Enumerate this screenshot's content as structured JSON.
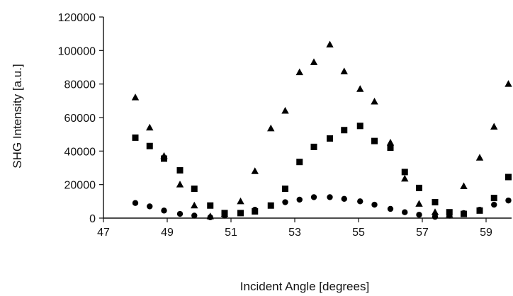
{
  "chart_data": {
    "type": "scatter",
    "title": "",
    "xlabel": "Incident Angle [degrees]",
    "ylabel": "SHG Intensity [a.u.]",
    "xlim": [
      47,
      59.8
    ],
    "ylim": [
      0,
      120000
    ],
    "xticks": [
      47,
      49,
      51,
      53,
      55,
      57,
      59
    ],
    "yticks": [
      0,
      20000,
      40000,
      60000,
      80000,
      100000,
      120000
    ],
    "grid": false,
    "legend": "none",
    "colors": {
      "marker": "#000000",
      "axis": "#111111"
    },
    "series": [
      {
        "marker": "triangle",
        "x": [
          48.0,
          48.45,
          48.9,
          49.4,
          49.85,
          50.35,
          50.8,
          51.3,
          51.75,
          52.25,
          52.7,
          53.15,
          53.6,
          54.1,
          54.55,
          55.05,
          55.5,
          56.0,
          56.45,
          56.9,
          57.4,
          57.85,
          58.3,
          58.8,
          59.25,
          59.7
        ],
        "y": [
          72000,
          54000,
          37000,
          20000,
          7500,
          1000,
          2500,
          10000,
          28000,
          53500,
          64000,
          87000,
          93000,
          103500,
          87500,
          77000,
          69500,
          45000,
          23500,
          8500,
          3500,
          2000,
          19000,
          36000,
          54500,
          80000
        ]
      },
      {
        "marker": "square",
        "x": [
          48.0,
          48.45,
          48.9,
          49.4,
          49.85,
          50.35,
          50.8,
          51.3,
          51.75,
          52.25,
          52.7,
          53.15,
          53.6,
          54.1,
          54.55,
          55.05,
          55.5,
          56.0,
          56.45,
          56.9,
          57.4,
          57.85,
          58.3,
          58.8,
          59.25,
          59.7
        ],
        "y": [
          48000,
          43000,
          35500,
          28500,
          17500,
          7500,
          3000,
          3000,
          4000,
          7500,
          17500,
          33500,
          42500,
          47500,
          52500,
          55000,
          46000,
          42000,
          27500,
          18000,
          9500,
          3500,
          2500,
          4500,
          12000,
          24500
        ]
      },
      {
        "marker": "circle",
        "x": [
          48.0,
          48.45,
          48.9,
          49.4,
          49.85,
          50.35,
          50.8,
          51.3,
          51.75,
          52.25,
          52.7,
          53.15,
          53.6,
          54.1,
          54.55,
          55.05,
          55.5,
          56.0,
          56.45,
          56.9,
          57.4,
          57.85,
          58.3,
          58.8,
          59.25,
          59.7
        ],
        "y": [
          9000,
          7000,
          4500,
          2500,
          1500,
          500,
          1500,
          3000,
          5000,
          7500,
          9500,
          11000,
          12500,
          12500,
          11500,
          10000,
          8000,
          5500,
          3500,
          2000,
          800,
          1500,
          3000,
          5000,
          8000,
          10500
        ]
      }
    ]
  }
}
